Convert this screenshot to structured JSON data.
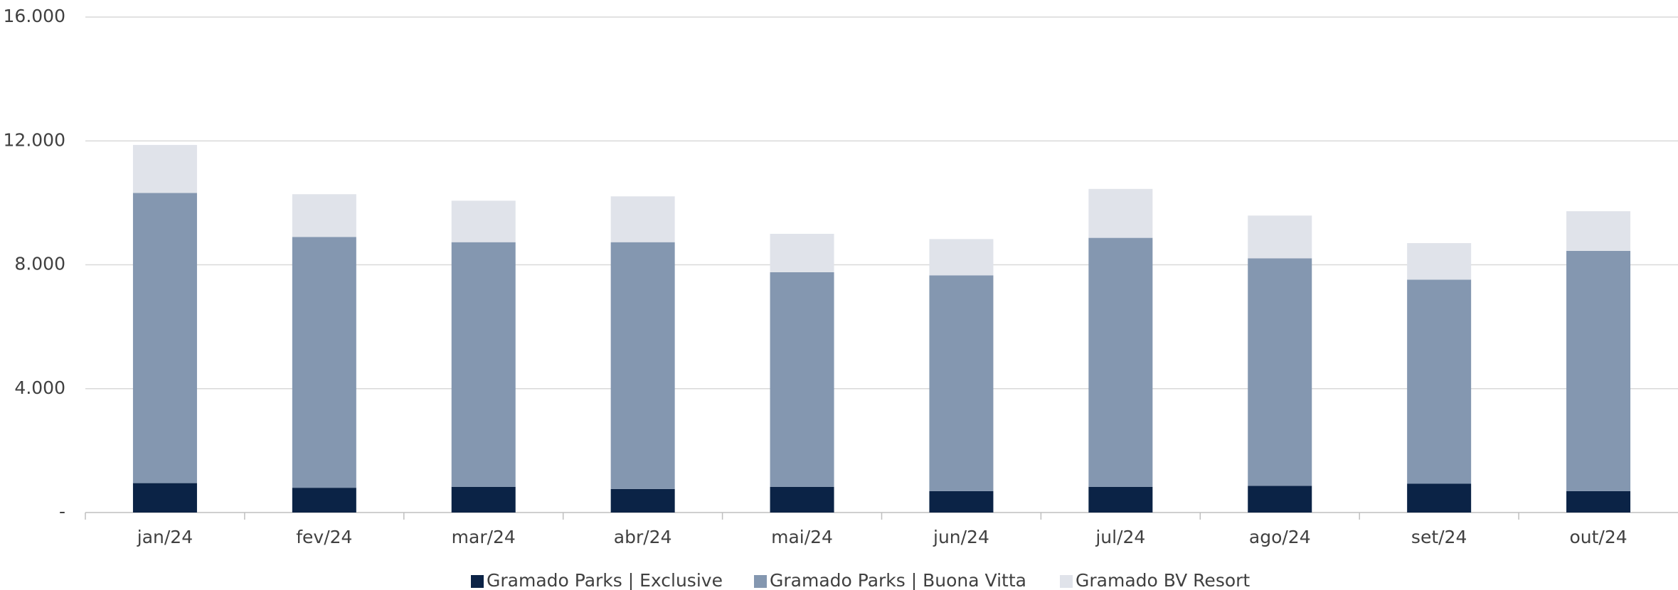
{
  "chart_data": {
    "type": "stacked_bar",
    "categories": [
      "jan/24",
      "fev/24",
      "mar/24",
      "abr/24",
      "mai/24",
      "jun/24",
      "jul/24",
      "ago/24",
      "set/24",
      "out/24"
    ],
    "series": [
      {
        "name": "Gramado Parks | Exclusive",
        "color": "#0b2346",
        "values": [
          950,
          800,
          830,
          760,
          830,
          690,
          830,
          860,
          930,
          690
        ]
      },
      {
        "name": "Gramado Parks | Buona Vitta",
        "color": "#8497b0",
        "values": [
          9370,
          8100,
          7900,
          7970,
          6930,
          6970,
          8040,
          7350,
          6590,
          7760
        ]
      },
      {
        "name": "Gramado BV Resort",
        "color": "#e0e3ea",
        "values": [
          1550,
          1380,
          1340,
          1480,
          1240,
          1170,
          1580,
          1380,
          1180,
          1280
        ]
      }
    ],
    "ylim": [
      0,
      16000
    ],
    "yticks": [
      {
        "value": 0,
        "label": "-"
      },
      {
        "value": 4000,
        "label": "4.000"
      },
      {
        "value": 8000,
        "label": "8.000"
      },
      {
        "value": 12000,
        "label": "12.000"
      },
      {
        "value": 16000,
        "label": "16.000"
      }
    ],
    "grid": true,
    "legend": "bottom"
  }
}
